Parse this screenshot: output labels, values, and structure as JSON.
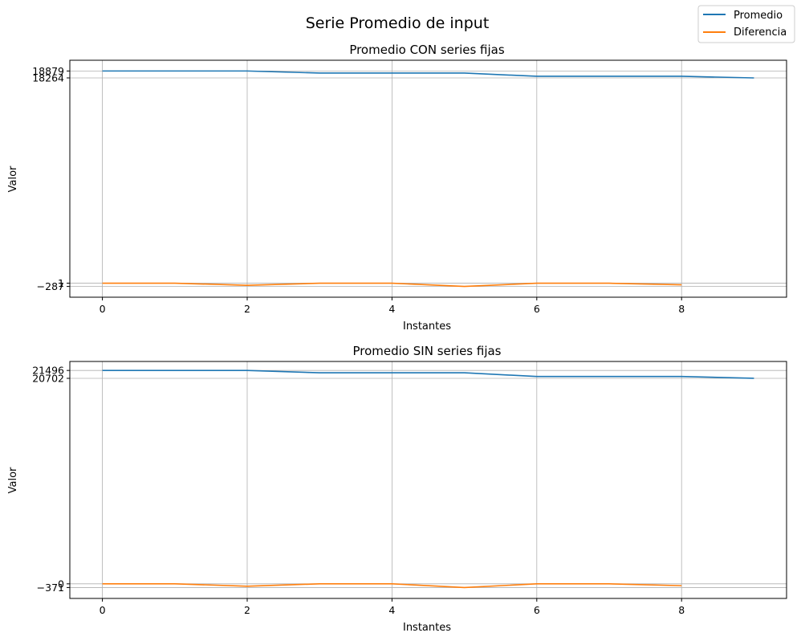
{
  "figure": {
    "suptitle": "Serie Promedio de input",
    "legend": {
      "placement": "top-right",
      "entries": [
        {
          "label": "Promedio",
          "color": "#1f77b4"
        },
        {
          "label": "Diferencia",
          "color": "#ff7f0e"
        }
      ]
    }
  },
  "chart_data": [
    {
      "type": "line",
      "title": "Promedio CON series fijas",
      "xlabel": "Instantes",
      "ylabel": "Valor",
      "grid": true,
      "xlim": [
        -0.45,
        9.45
      ],
      "ylim": [
        -1245,
        19835
      ],
      "xticks": [
        0,
        2,
        4,
        6,
        8
      ],
      "xtick_labels": [
        "0",
        "2",
        "4",
        "6",
        "8"
      ],
      "yticks": [
        -287,
        1,
        18264,
        18879
      ],
      "ytick_labels": [
        "−287",
        "1",
        "18264",
        "18879"
      ],
      "series": [
        {
          "name": "Promedio",
          "color": "#1f77b4",
          "x": [
            0,
            1,
            2,
            3,
            4,
            5,
            6,
            7,
            8,
            9
          ],
          "y": [
            18879,
            18879,
            18879,
            18695,
            18695,
            18695,
            18407,
            18407,
            18407,
            18264
          ]
        },
        {
          "name": "Diferencia",
          "color": "#ff7f0e",
          "x": [
            0,
            1,
            2,
            3,
            4,
            5,
            6,
            7,
            8
          ],
          "y": [
            1,
            0,
            -184,
            0,
            0,
            -287,
            0,
            0,
            -143
          ]
        }
      ]
    },
    {
      "type": "line",
      "title": "Promedio SIN series fijas",
      "xlabel": "Instantes",
      "ylabel": "Valor",
      "grid": true,
      "xlim": [
        -0.45,
        9.45
      ],
      "ylim": [
        -1470,
        22400
      ],
      "xticks": [
        0,
        2,
        4,
        6,
        8
      ],
      "xtick_labels": [
        "0",
        "2",
        "4",
        "6",
        "8"
      ],
      "yticks": [
        -371,
        0,
        20702,
        21496
      ],
      "ytick_labels": [
        "−371",
        "0",
        "20702",
        "21496"
      ],
      "series": [
        {
          "name": "Promedio",
          "color": "#1f77b4",
          "x": [
            0,
            1,
            2,
            3,
            4,
            5,
            6,
            7,
            8,
            9
          ],
          "y": [
            21496,
            21496,
            21496,
            21258,
            21258,
            21258,
            20887,
            20887,
            20887,
            20702
          ]
        },
        {
          "name": "Diferencia",
          "color": "#ff7f0e",
          "x": [
            0,
            1,
            2,
            3,
            4,
            5,
            6,
            7,
            8
          ],
          "y": [
            0,
            0,
            -238,
            0,
            0,
            -371,
            0,
            0,
            -185
          ]
        }
      ]
    }
  ]
}
